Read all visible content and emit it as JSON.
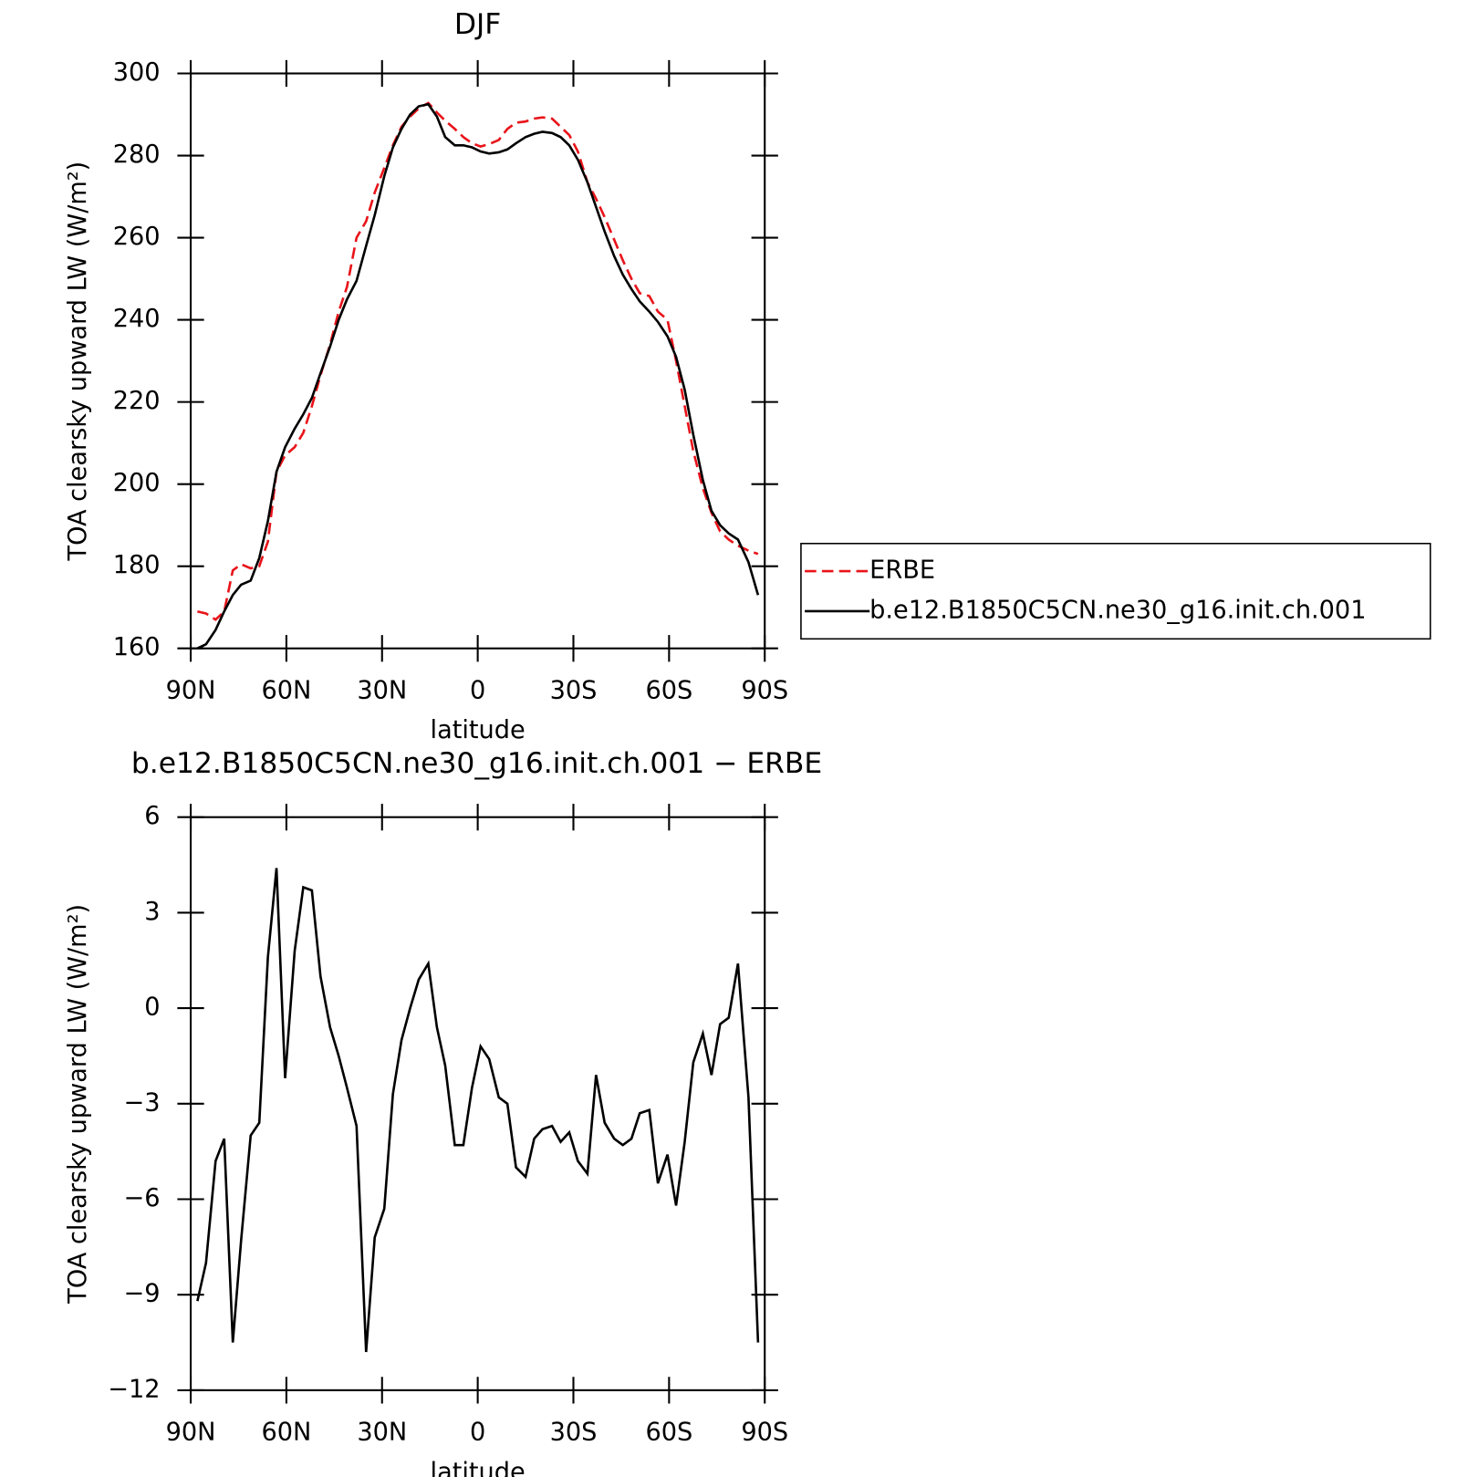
{
  "chart_data": [
    {
      "type": "line",
      "title": "DJF",
      "ylabel": "TOA clearsky upward LW (W/m²)",
      "xlabel": "latitude",
      "x": [
        87.9,
        85.2,
        82.2,
        79.5,
        76.8,
        74.2,
        71.2,
        68.5,
        65.8,
        63.1,
        60.4,
        57.4,
        54.7,
        52.0,
        49.3,
        46.3,
        43.6,
        41.0,
        38.0,
        35.0,
        32.3,
        29.3,
        26.6,
        23.9,
        21.2,
        18.5,
        15.5,
        12.8,
        10.2,
        7.2,
        4.5,
        1.8,
        -0.9,
        -3.6,
        -6.6,
        -9.3,
        -12.0,
        -15.0,
        -17.7,
        -20.3,
        -23.3,
        -26.0,
        -28.7,
        -31.4,
        -34.4,
        -37.1,
        -39.8,
        -42.8,
        -45.5,
        -48.2,
        -50.8,
        -53.8,
        -56.5,
        -59.5,
        -62.2,
        -64.9,
        -67.6,
        -70.6,
        -73.3,
        -76.0,
        -78.7,
        -81.6,
        -84.9,
        -87.9
      ],
      "series": [
        {
          "name": "ERBE",
          "color": "#e8141a",
          "dashed": true,
          "values": [
            169,
            168.5,
            167,
            169,
            179,
            180.5,
            179.5,
            180,
            186,
            203,
            207,
            209,
            212.5,
            219,
            226.5,
            234,
            242,
            248,
            260,
            264,
            271,
            277,
            282.5,
            287,
            289.5,
            291.5,
            292.8,
            290.5,
            288.5,
            286.5,
            284.5,
            283,
            282.2,
            282.8,
            283.8,
            286.5,
            288,
            288.3,
            289,
            289.3,
            289,
            287,
            285,
            281,
            273.5,
            269.5,
            265,
            259.5,
            254.5,
            250,
            246.5,
            245.8,
            242,
            240,
            230,
            219,
            208,
            199,
            193,
            188.5,
            186.5,
            185,
            183.8,
            183
          ]
        },
        {
          "name": "b.e12.B1850C5CN.ne30_g16.init.ch.001",
          "color": "#000000",
          "dashed": false,
          "values": [
            160,
            161,
            164.5,
            169,
            173,
            175.5,
            176.5,
            182,
            191,
            203,
            209,
            213.5,
            217,
            221,
            227,
            233.5,
            240,
            245,
            249.5,
            258,
            265.5,
            275,
            282,
            286.5,
            290,
            292,
            292.5,
            289.5,
            284.5,
            282.5,
            282.5,
            282,
            281,
            280.5,
            280.8,
            281.5,
            283,
            284.5,
            285.3,
            285.8,
            285.5,
            284.5,
            282.5,
            279,
            273.5,
            267.5,
            261.5,
            255.5,
            251,
            247.5,
            244.5,
            242,
            239.5,
            236,
            231,
            223,
            212,
            201,
            193.5,
            190,
            188,
            186.5,
            181,
            173
          ]
        }
      ],
      "xlim": [
        90,
        -90
      ],
      "xticks": [
        {
          "value": 90,
          "label": "90N"
        },
        {
          "value": 60,
          "label": "60N"
        },
        {
          "value": 30,
          "label": "30N"
        },
        0,
        {
          "value": -30,
          "label": "30S"
        },
        {
          "value": -60,
          "label": "60S"
        },
        {
          "value": -90,
          "label": "90S"
        }
      ],
      "ylim": [
        160,
        300
      ],
      "yticks": [
        160,
        180,
        200,
        220,
        240,
        260,
        280,
        300
      ],
      "legend": "right"
    },
    {
      "type": "line",
      "title": "b.e12.B1850C5CN.ne30_g16.init.ch.001 − ERBE",
      "ylabel": "TOA clearsky upward LW (W/m²)",
      "xlabel": "latitude",
      "x": [
        87.9,
        85.2,
        82.2,
        79.5,
        76.8,
        74.2,
        71.2,
        68.5,
        65.8,
        63.1,
        60.4,
        57.4,
        54.7,
        52.0,
        49.3,
        46.3,
        43.6,
        41.0,
        38.0,
        35.0,
        32.3,
        29.3,
        26.6,
        23.9,
        21.2,
        18.5,
        15.5,
        12.8,
        10.2,
        7.2,
        4.5,
        1.8,
        -0.9,
        -3.6,
        -6.6,
        -9.3,
        -12.0,
        -15.0,
        -17.7,
        -20.3,
        -23.3,
        -26.0,
        -28.7,
        -31.4,
        -34.4,
        -37.1,
        -39.8,
        -42.8,
        -45.5,
        -48.2,
        -50.8,
        -53.8,
        -56.5,
        -59.5,
        -62.2,
        -64.9,
        -67.6,
        -70.6,
        -73.3,
        -76.0,
        -78.7,
        -81.6,
        -84.9,
        -87.9
      ],
      "series": [
        {
          "color": "#000000",
          "dashed": false,
          "values": [
            -9.2,
            -8.0,
            -4.8,
            -4.1,
            -10.5,
            -7.3,
            -4.0,
            -3.6,
            1.6,
            4.4,
            -2.2,
            1.8,
            3.8,
            3.7,
            1.0,
            -0.6,
            -1.5,
            -2.5,
            -3.7,
            -10.8,
            -7.2,
            -6.3,
            -2.7,
            -1.0,
            0.0,
            0.9,
            1.4,
            -0.6,
            -1.8,
            -4.3,
            -4.3,
            -2.5,
            -1.2,
            -1.6,
            -2.8,
            -3.0,
            -5.0,
            -5.3,
            -4.1,
            -3.8,
            -3.7,
            -4.2,
            -3.9,
            -4.8,
            -5.2,
            -2.1,
            -3.6,
            -4.1,
            -4.3,
            -4.1,
            -3.3,
            -3.2,
            -5.5,
            -4.6,
            -6.2,
            -4.2,
            -1.7,
            -0.8,
            -2.1,
            -0.5,
            -0.3,
            1.4,
            -2.8,
            -10.5
          ]
        }
      ],
      "xlim": [
        90,
        -90
      ],
      "xticks": [
        {
          "value": 90,
          "label": "90N"
        },
        {
          "value": 60,
          "label": "60N"
        },
        {
          "value": 30,
          "label": "30N"
        },
        0,
        {
          "value": -30,
          "label": "30S"
        },
        {
          "value": -60,
          "label": "60S"
        },
        {
          "value": -90,
          "label": "90S"
        }
      ],
      "ylim": [
        -12,
        6
      ],
      "yticks": [
        {
          "value": -12,
          "label": "−12"
        },
        {
          "value": -9,
          "label": "−9"
        },
        {
          "value": -6,
          "label": "−6"
        },
        {
          "value": -3,
          "label": "−3"
        },
        0,
        3,
        6
      ]
    }
  ]
}
